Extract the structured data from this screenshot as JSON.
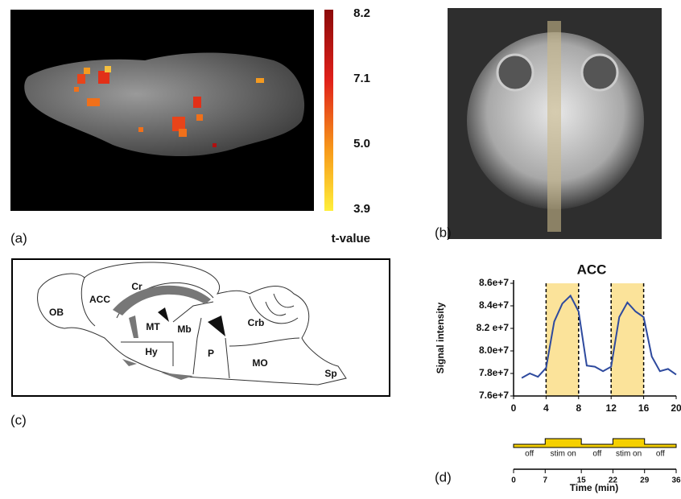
{
  "panel_labels": [
    "(a)",
    "(b)",
    "(c)",
    "(d)"
  ],
  "colorbar": {
    "title": "t-value",
    "ticks": [
      "8.2",
      "7.1",
      "5.0",
      "3.9"
    ]
  },
  "diagram": {
    "regions": [
      "OB",
      "ACC",
      "Cr",
      "MT",
      "Mb",
      "Crb",
      "Hy",
      "P",
      "MO",
      "Sp"
    ]
  },
  "chart_data": {
    "type": "line",
    "title": "ACC",
    "y_label": "Signal intensity",
    "x": [
      1,
      2,
      3,
      4,
      5,
      6,
      7,
      8,
      9,
      10,
      11,
      12,
      13,
      14,
      15,
      16,
      17,
      18,
      19,
      20
    ],
    "series": [
      {
        "name": "ACC",
        "color": "#2e4a9e",
        "values": [
          77600000,
          78000000,
          77700000,
          78500000,
          82600000,
          84200000,
          84900000,
          83500000,
          78700000,
          78600000,
          78200000,
          78600000,
          83000000,
          84300000,
          83500000,
          83000000,
          79500000,
          78200000,
          78400000,
          77900000
        ]
      }
    ],
    "xlim": [
      0,
      20
    ],
    "xticks": [
      0,
      4,
      8,
      12,
      16,
      20
    ],
    "ylim": [
      76000000,
      86000000
    ],
    "yticks": [
      {
        "value": 76000000,
        "label": "7.6e+7"
      },
      {
        "value": 78000000,
        "label": "7.8e+7"
      },
      {
        "value": 80000000,
        "label": "8.0e+7"
      },
      {
        "value": 82000000,
        "label": "8.2 e+7"
      },
      {
        "value": 84000000,
        "label": "8.4e+7"
      },
      {
        "value": 86000000,
        "label": "8.6e+7"
      }
    ],
    "shaded_spans": [
      [
        4,
        8
      ],
      [
        12,
        16
      ]
    ],
    "shade_color": "#fbe39a"
  },
  "timeline": {
    "labels": [
      "off",
      "stim on",
      "off",
      "stim on",
      "off"
    ],
    "ticks": [
      0,
      7,
      15,
      22,
      29,
      36
    ],
    "x_label": "Time (min)"
  }
}
